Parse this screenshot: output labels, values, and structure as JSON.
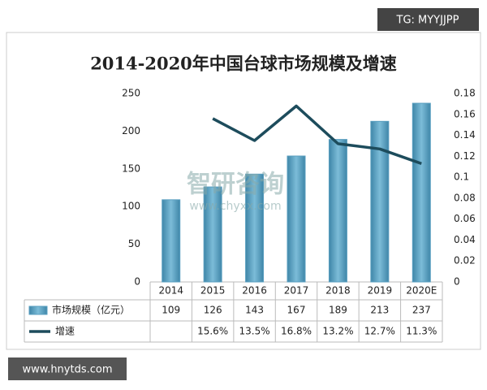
{
  "chart_data": {
    "type": "bar_line",
    "title": "2014-2020年中国台球市场规模及增速",
    "categories": [
      "2014",
      "2015",
      "2016",
      "2017",
      "2018",
      "2019",
      "2020E"
    ],
    "series": [
      {
        "name": "市场规模（亿元）",
        "type": "bar",
        "color": "#5a9fc0",
        "values": [
          109,
          126,
          143,
          167,
          189,
          213,
          237
        ]
      },
      {
        "name": "增速",
        "type": "line",
        "axis": "y2",
        "color": "#1d4c5c",
        "values": [
          null,
          0.156,
          0.135,
          0.168,
          0.132,
          0.127,
          0.113
        ],
        "value_labels": [
          null,
          "15.6%",
          "13.5%",
          "16.8%",
          "13.2%",
          "12.7%",
          "11.3%"
        ]
      }
    ],
    "ylim": [
      0,
      250
    ],
    "yticks": [
      0,
      50,
      100,
      150,
      200,
      250
    ],
    "y2lim": [
      0,
      0.18
    ],
    "y2ticks": [
      0,
      0.02,
      0.04,
      0.06,
      0.08,
      0.1,
      0.12,
      0.14,
      0.16,
      0.18
    ],
    "grid": false
  },
  "overlay": {
    "tag": "TG: MYYJJPP",
    "site": "www.hnytds.com",
    "watermark": "智研咨询",
    "watermark_url": "www.chyxx.com"
  }
}
